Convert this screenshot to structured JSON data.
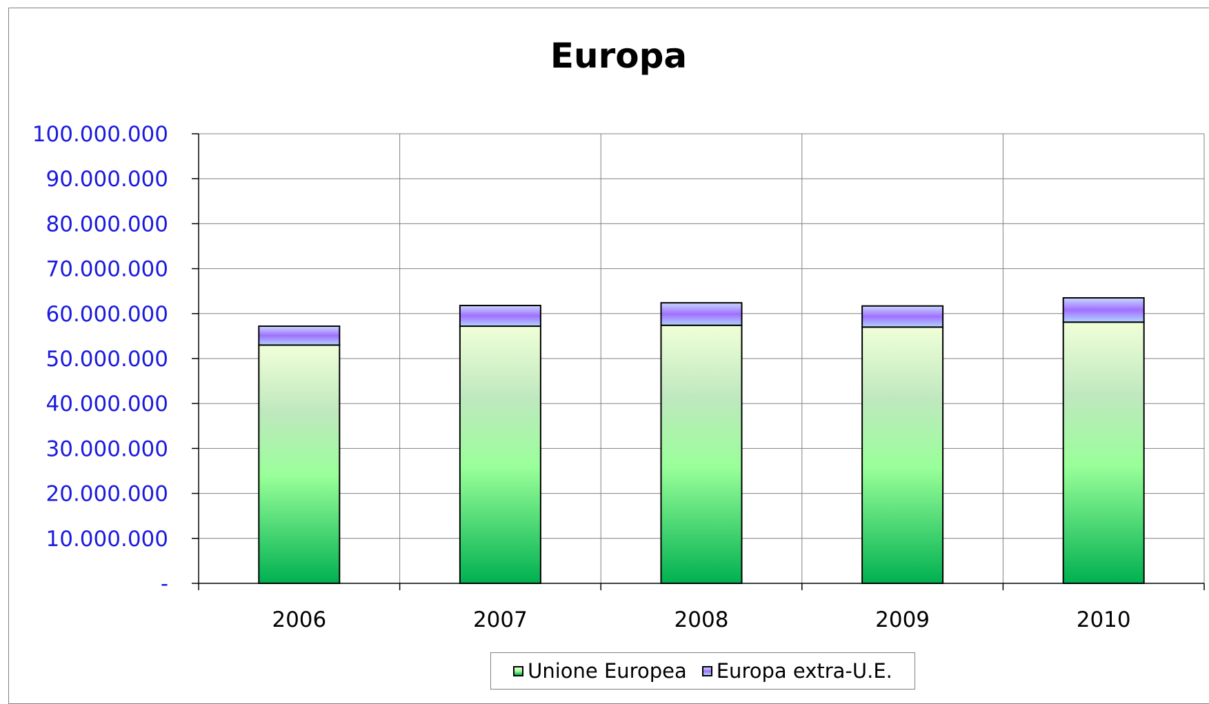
{
  "chart_data": {
    "type": "bar",
    "stacked": true,
    "title": "Europa",
    "categories": [
      "2006",
      "2007",
      "2008",
      "2009",
      "2010"
    ],
    "series": [
      {
        "name": "Unione Europea",
        "values": [
          53000000,
          57200000,
          57400000,
          57000000,
          58100000
        ],
        "color": "#00b050"
      },
      {
        "name": "Europa extra-U.E.",
        "values": [
          4200000,
          4600000,
          5000000,
          4700000,
          5400000
        ],
        "color": "#9999ff"
      }
    ],
    "y_ticks": [
      "-",
      "10.000.000",
      "20.000.000",
      "30.000.000",
      "40.000.000",
      "50.000.000",
      "60.000.000",
      "70.000.000",
      "80.000.000",
      "90.000.000",
      "100.000.000"
    ],
    "ylim": [
      0,
      100000000
    ],
    "y_tick_step": 10000000,
    "grid": true,
    "legend_position": "bottom"
  }
}
